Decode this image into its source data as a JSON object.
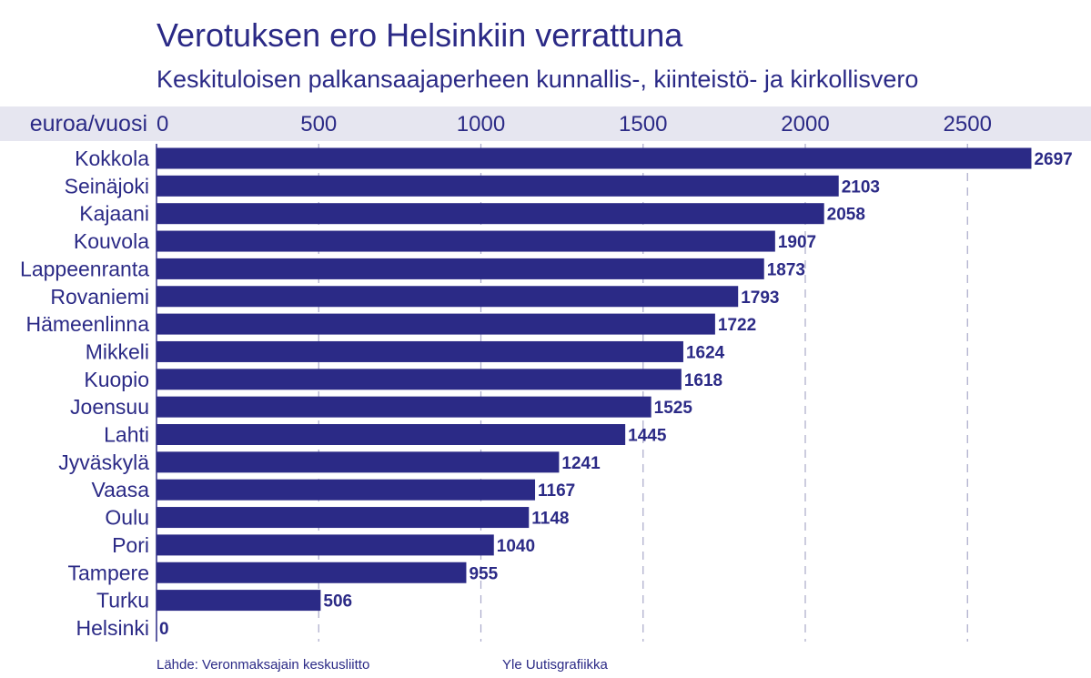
{
  "title": "Verotuksen ero Helsinkiin verrattuna",
  "subtitle": "Keskituloisen palkansaajaperheen kunnallis-, kiinteistö- ja kirkollisvero",
  "footer": {
    "source": "Lähde: Veronmaksajain keskusliitto",
    "credit": "Yle Uutisgrafiikka"
  },
  "colors": {
    "bar": "#2b2a86",
    "text": "#2b2a86",
    "header_band": "#e6e6f0",
    "grid": "#a9a9c9"
  },
  "chart_data": {
    "type": "bar",
    "orientation": "horizontal",
    "title": "Verotuksen ero Helsinkiin verrattuna",
    "subtitle": "Keskituloisen palkansaajaperheen kunnallis-, kiinteistö- ja kirkollisvero",
    "unit_label": "euroa/vuosi",
    "x_ticks": [
      0,
      500,
      1000,
      1500,
      2000,
      2500
    ],
    "xlim": [
      0,
      2750
    ],
    "grid": "dashed vertical",
    "axis_position": "top",
    "data_labels": true,
    "categories": [
      "Kokkola",
      "Seinäjoki",
      "Kajaani",
      "Kouvola",
      "Lappeenranta",
      "Rovaniemi",
      "Hämeenlinna",
      "Mikkeli",
      "Kuopio",
      "Joensuu",
      "Lahti",
      "Jyväskylä",
      "Vaasa",
      "Oulu",
      "Pori",
      "Tampere",
      "Turku",
      "Helsinki"
    ],
    "values": [
      2697,
      2103,
      2058,
      1907,
      1873,
      1793,
      1722,
      1624,
      1618,
      1525,
      1445,
      1241,
      1167,
      1148,
      1040,
      955,
      506,
      0
    ]
  }
}
